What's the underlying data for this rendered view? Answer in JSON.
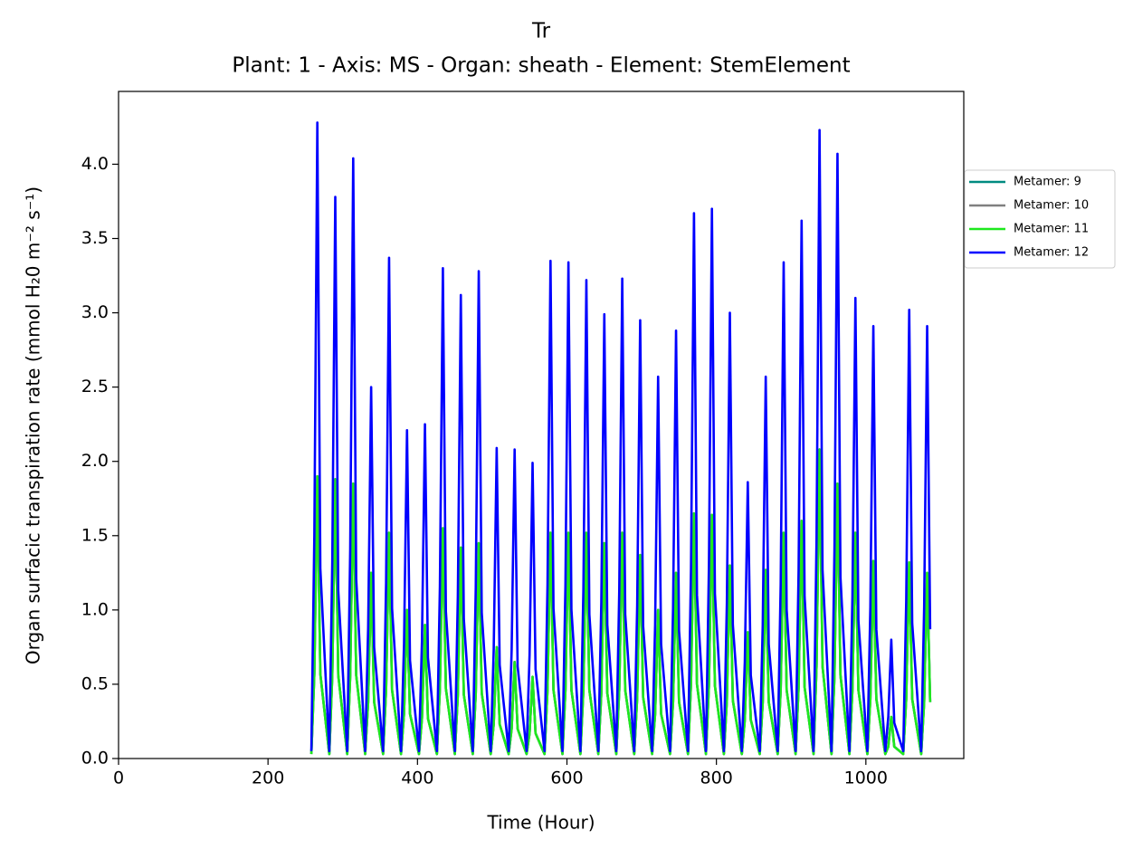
{
  "chart_data": {
    "type": "line",
    "title": "Tr",
    "subtitle": "Plant: 1 - Axis: MS - Organ: sheath - Element: StemElement",
    "x_label": "Time (Hour)",
    "y_label": "Organ surfacic transpiration rate (mmol H₂0 m⁻² s⁻¹)",
    "xlim": [
      0,
      1131
    ],
    "ylim": [
      0,
      4.49
    ],
    "xticks": [
      0,
      200,
      400,
      600,
      800,
      1000
    ],
    "yticks": [
      {
        "value": 0,
        "label": "0.0"
      },
      0.5,
      {
        "value": 1,
        "label": "1.0"
      },
      1.5,
      {
        "value": 2,
        "label": "2.0"
      },
      2.5,
      {
        "value": 3,
        "label": "3.0"
      },
      3.5,
      {
        "value": 4,
        "label": "4.0"
      }
    ],
    "legend": "outside-right",
    "x": [
      258,
      262,
      266,
      270,
      282,
      286,
      290,
      294,
      306,
      310,
      314,
      318,
      330,
      334,
      338,
      342,
      354,
      358,
      362,
      366,
      378,
      382,
      386,
      390,
      402,
      406,
      410,
      414,
      426,
      430,
      434,
      438,
      450,
      454,
      458,
      462,
      474,
      478,
      482,
      486,
      498,
      502,
      506,
      510,
      522,
      526,
      530,
      534,
      546,
      550,
      554,
      558,
      570,
      574,
      578,
      582,
      594,
      598,
      602,
      606,
      618,
      622,
      626,
      630,
      642,
      646,
      650,
      654,
      666,
      670,
      674,
      678,
      690,
      694,
      698,
      702,
      714,
      718,
      722,
      726,
      738,
      742,
      746,
      750,
      762,
      766,
      770,
      774,
      786,
      790,
      794,
      798,
      810,
      814,
      818,
      822,
      834,
      838,
      842,
      846,
      858,
      862,
      866,
      870,
      882,
      886,
      890,
      894,
      906,
      910,
      914,
      918,
      930,
      934,
      938,
      942,
      954,
      958,
      962,
      966,
      978,
      982,
      986,
      990,
      1002,
      1006,
      1010,
      1014,
      1026,
      1030,
      1034,
      1038,
      1050,
      1054,
      1058,
      1062,
      1074,
      1078,
      1082,
      1086
    ],
    "series": [
      {
        "name": "Metamer: 9",
        "color": "#008b80",
        "values": [
          0.03,
          0.57,
          1.9,
          0.57,
          0.03,
          0.56,
          1.88,
          0.56,
          0.03,
          0.56,
          1.85,
          0.56,
          0.03,
          0.38,
          1.25,
          0.38,
          0.03,
          0.46,
          1.52,
          0.46,
          0.03,
          0.3,
          1.0,
          0.3,
          0.03,
          0.27,
          0.9,
          0.27,
          0.03,
          0.47,
          1.55,
          0.47,
          0.03,
          0.43,
          1.42,
          0.43,
          0.03,
          0.44,
          1.45,
          0.44,
          0.03,
          0.23,
          0.75,
          0.23,
          0.03,
          0.2,
          0.65,
          0.2,
          0.03,
          0.17,
          0.55,
          0.17,
          0.03,
          0.46,
          1.52,
          0.46,
          0.03,
          0.46,
          1.52,
          0.46,
          0.03,
          0.46,
          1.52,
          0.46,
          0.03,
          0.44,
          1.45,
          0.44,
          0.03,
          0.46,
          1.52,
          0.46,
          0.03,
          0.41,
          1.37,
          0.41,
          0.03,
          0.3,
          1.0,
          0.3,
          0.03,
          0.38,
          1.25,
          0.38,
          0.03,
          0.5,
          1.65,
          0.5,
          0.03,
          0.49,
          1.64,
          0.49,
          0.03,
          0.39,
          1.3,
          0.39,
          0.03,
          0.26,
          0.85,
          0.26,
          0.03,
          0.38,
          1.27,
          0.38,
          0.03,
          0.46,
          1.52,
          0.46,
          0.03,
          0.48,
          1.6,
          0.48,
          0.03,
          0.62,
          2.08,
          0.62,
          0.03,
          0.56,
          1.85,
          0.56,
          0.03,
          0.46,
          1.52,
          0.46,
          0.03,
          0.4,
          1.33,
          0.4,
          0.03,
          0.08,
          0.28,
          0.08,
          0.03,
          0.4,
          1.32,
          0.4,
          0.03,
          0.38,
          1.25,
          0.38
        ]
      },
      {
        "name": "Metamer: 10",
        "color": "#808080",
        "values": [
          0.03,
          0.57,
          1.9,
          0.57,
          0.03,
          0.56,
          1.88,
          0.56,
          0.03,
          0.56,
          1.85,
          0.56,
          0.03,
          0.38,
          1.25,
          0.38,
          0.03,
          0.46,
          1.52,
          0.46,
          0.03,
          0.3,
          1.0,
          0.3,
          0.03,
          0.27,
          0.9,
          0.27,
          0.03,
          0.47,
          1.55,
          0.47,
          0.03,
          0.43,
          1.42,
          0.43,
          0.03,
          0.44,
          1.45,
          0.44,
          0.03,
          0.23,
          0.75,
          0.23,
          0.03,
          0.2,
          0.65,
          0.2,
          0.03,
          0.17,
          0.55,
          0.17,
          0.03,
          0.46,
          1.52,
          0.46,
          0.03,
          0.46,
          1.52,
          0.46,
          0.03,
          0.46,
          1.52,
          0.46,
          0.03,
          0.44,
          1.45,
          0.44,
          0.03,
          0.46,
          1.52,
          0.46,
          0.03,
          0.41,
          1.37,
          0.41,
          0.03,
          0.3,
          1.0,
          0.3,
          0.03,
          0.38,
          1.25,
          0.38,
          0.03,
          0.5,
          1.65,
          0.5,
          0.03,
          0.49,
          1.64,
          0.49,
          0.03,
          0.39,
          1.3,
          0.39,
          0.03,
          0.26,
          0.85,
          0.26,
          0.03,
          0.38,
          1.27,
          0.38,
          0.03,
          0.46,
          1.52,
          0.46,
          0.03,
          0.48,
          1.6,
          0.48,
          0.03,
          0.62,
          2.08,
          0.62,
          0.03,
          0.56,
          1.85,
          0.56,
          0.03,
          0.46,
          1.52,
          0.46,
          0.03,
          0.4,
          1.33,
          0.4,
          0.03,
          0.08,
          0.28,
          0.08,
          0.03,
          0.4,
          1.32,
          0.4,
          0.03,
          0.38,
          1.25,
          0.38
        ]
      },
      {
        "name": "Metamer: 11",
        "color": "#1ee81e",
        "values": [
          0.03,
          0.57,
          1.9,
          0.57,
          0.03,
          0.56,
          1.88,
          0.56,
          0.03,
          0.56,
          1.85,
          0.56,
          0.03,
          0.38,
          1.25,
          0.38,
          0.03,
          0.46,
          1.52,
          0.46,
          0.03,
          0.3,
          1.0,
          0.3,
          0.03,
          0.27,
          0.9,
          0.27,
          0.03,
          0.47,
          1.55,
          0.47,
          0.03,
          0.43,
          1.42,
          0.43,
          0.03,
          0.44,
          1.45,
          0.44,
          0.03,
          0.23,
          0.75,
          0.23,
          0.03,
          0.2,
          0.65,
          0.2,
          0.03,
          0.17,
          0.55,
          0.17,
          0.03,
          0.46,
          1.52,
          0.46,
          0.03,
          0.46,
          1.52,
          0.46,
          0.03,
          0.46,
          1.52,
          0.46,
          0.03,
          0.44,
          1.45,
          0.44,
          0.03,
          0.46,
          1.52,
          0.46,
          0.03,
          0.41,
          1.37,
          0.41,
          0.03,
          0.3,
          1.0,
          0.3,
          0.03,
          0.38,
          1.25,
          0.38,
          0.03,
          0.5,
          1.65,
          0.5,
          0.03,
          0.49,
          1.64,
          0.49,
          0.03,
          0.39,
          1.3,
          0.39,
          0.03,
          0.26,
          0.85,
          0.26,
          0.03,
          0.38,
          1.27,
          0.38,
          0.03,
          0.46,
          1.52,
          0.46,
          0.03,
          0.48,
          1.6,
          0.48,
          0.03,
          0.62,
          2.08,
          0.62,
          0.03,
          0.56,
          1.85,
          0.56,
          0.03,
          0.46,
          1.52,
          0.46,
          0.03,
          0.4,
          1.33,
          0.4,
          0.03,
          0.08,
          0.28,
          0.08,
          0.03,
          0.4,
          1.32,
          0.4,
          0.03,
          0.38,
          1.25,
          0.38
        ]
      },
      {
        "name": "Metamer: 12",
        "color": "#0000ff",
        "values": [
          0.05,
          1.5,
          4.28,
          1.28,
          0.05,
          1.32,
          3.78,
          1.13,
          0.05,
          1.41,
          4.04,
          1.21,
          0.05,
          0.88,
          2.5,
          0.75,
          0.05,
          1.18,
          3.37,
          1.01,
          0.05,
          0.77,
          2.21,
          0.66,
          0.05,
          0.79,
          2.25,
          0.68,
          0.05,
          1.16,
          3.3,
          0.99,
          0.05,
          1.09,
          3.12,
          0.94,
          0.05,
          1.15,
          3.28,
          0.98,
          0.05,
          0.73,
          2.09,
          0.63,
          0.05,
          0.73,
          2.08,
          0.62,
          0.05,
          0.7,
          1.99,
          0.6,
          0.05,
          1.17,
          3.35,
          1.01,
          0.05,
          1.17,
          3.34,
          1.0,
          0.05,
          1.13,
          3.22,
          0.97,
          0.05,
          1.05,
          2.99,
          0.9,
          0.05,
          1.13,
          3.23,
          0.97,
          0.05,
          1.03,
          2.95,
          0.89,
          0.05,
          0.9,
          2.57,
          0.77,
          0.05,
          1.01,
          2.88,
          0.86,
          0.05,
          1.28,
          3.67,
          1.1,
          0.05,
          1.3,
          3.7,
          1.11,
          0.05,
          1.05,
          3.0,
          0.9,
          0.05,
          0.65,
          1.86,
          0.56,
          0.05,
          0.9,
          2.57,
          0.77,
          0.05,
          1.17,
          3.34,
          1.0,
          0.05,
          1.27,
          3.62,
          1.09,
          0.05,
          1.48,
          4.23,
          1.27,
          0.05,
          1.42,
          4.07,
          1.22,
          0.05,
          1.09,
          3.1,
          0.93,
          0.05,
          1.02,
          2.91,
          0.87,
          0.05,
          0.28,
          0.8,
          0.24,
          0.05,
          1.06,
          3.02,
          0.91,
          0.05,
          1.02,
          2.91,
          0.87
        ]
      }
    ]
  }
}
